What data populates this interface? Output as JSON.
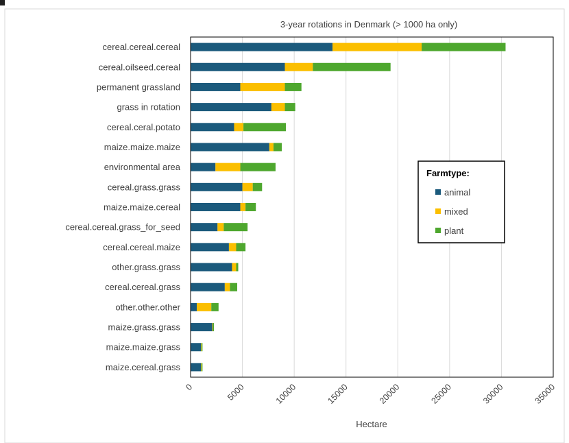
{
  "chart_data": {
    "type": "bar",
    "orientation": "horizontal",
    "stacked": true,
    "title": "3-year rotations in Denmark (> 1000 ha only)",
    "xlabel": "Hectare",
    "ylabel": "",
    "xlim": [
      0,
      35000
    ],
    "xticks": [
      0,
      5000,
      10000,
      15000,
      20000,
      25000,
      30000,
      35000
    ],
    "grid": "vertical",
    "legend": {
      "title": "Farmtype:",
      "placement": "right"
    },
    "categories": [
      "cereal.cereal.cereal",
      "cereal.oilseed.cereal",
      "permanent grassland",
      "grass in rotation",
      "cereal.ceral.potato",
      "maize.maize.maize",
      "environmental area",
      "cereal.grass.grass",
      "maize.maize.cereal",
      "cereal.cereal.grass_for_seed",
      "cereal.cereal.maize",
      "other.grass.grass",
      "cereal.cereal.grass",
      "other.other.other",
      "maize.grass.grass",
      "maize.maize.grass",
      "maize.cereal.grass"
    ],
    "series": [
      {
        "name": "animal",
        "color": "#1b5a7c",
        "values": [
          13700,
          9100,
          4800,
          7800,
          4200,
          7600,
          2400,
          5000,
          4800,
          2600,
          3700,
          4000,
          3300,
          600,
          2100,
          1000,
          1000
        ]
      },
      {
        "name": "mixed",
        "color": "#fbbf00",
        "values": [
          8600,
          2700,
          4300,
          1300,
          900,
          400,
          2400,
          1000,
          500,
          600,
          700,
          400,
          500,
          1400,
          50,
          50,
          50
        ]
      },
      {
        "name": "plant",
        "color": "#4ea72e",
        "values": [
          8100,
          7500,
          1600,
          1000,
          4100,
          800,
          3400,
          900,
          1000,
          2300,
          900,
          200,
          700,
          700,
          100,
          100,
          100
        ]
      }
    ]
  }
}
